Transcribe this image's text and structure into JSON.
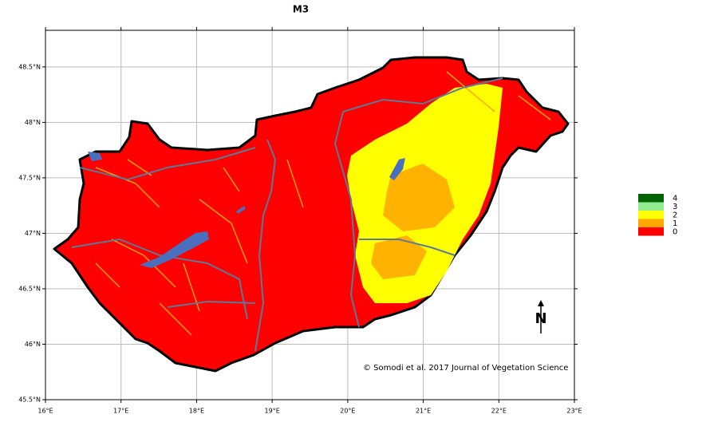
{
  "map": {
    "title": "M3",
    "xlim": [
      16,
      23
    ],
    "ylim": [
      45.5,
      48.83
    ],
    "xticks": [
      {
        "value": 16,
        "label": "16°E"
      },
      {
        "value": 17,
        "label": "17°E"
      },
      {
        "value": 18,
        "label": "18°E"
      },
      {
        "value": 19,
        "label": "19°E"
      },
      {
        "value": 20,
        "label": "20°E"
      },
      {
        "value": 21,
        "label": "21°E"
      },
      {
        "value": 22,
        "label": "22°E"
      },
      {
        "value": 23,
        "label": "23°E"
      }
    ],
    "yticks": [
      {
        "value": 45.5,
        "label": "45.5°N"
      },
      {
        "value": 46,
        "label": "46°N"
      },
      {
        "value": 46.5,
        "label": "46.5°N"
      },
      {
        "value": 47,
        "label": "47°N"
      },
      {
        "value": 47.5,
        "label": "47.5°N"
      },
      {
        "value": 48,
        "label": "48°N"
      },
      {
        "value": 48.5,
        "label": "48.5°N"
      }
    ],
    "grid": true,
    "legend": [
      {
        "label": "4",
        "color": "#006400"
      },
      {
        "label": "3",
        "color": "#90ee90"
      },
      {
        "label": "2",
        "color": "#ffff00"
      },
      {
        "label": "1",
        "color": "#ffa500"
      },
      {
        "label": "0",
        "color": "#ff0000"
      }
    ],
    "credit": "© Somodi et al. 2017 Journal of Vegetation Science",
    "north_label": "N"
  }
}
